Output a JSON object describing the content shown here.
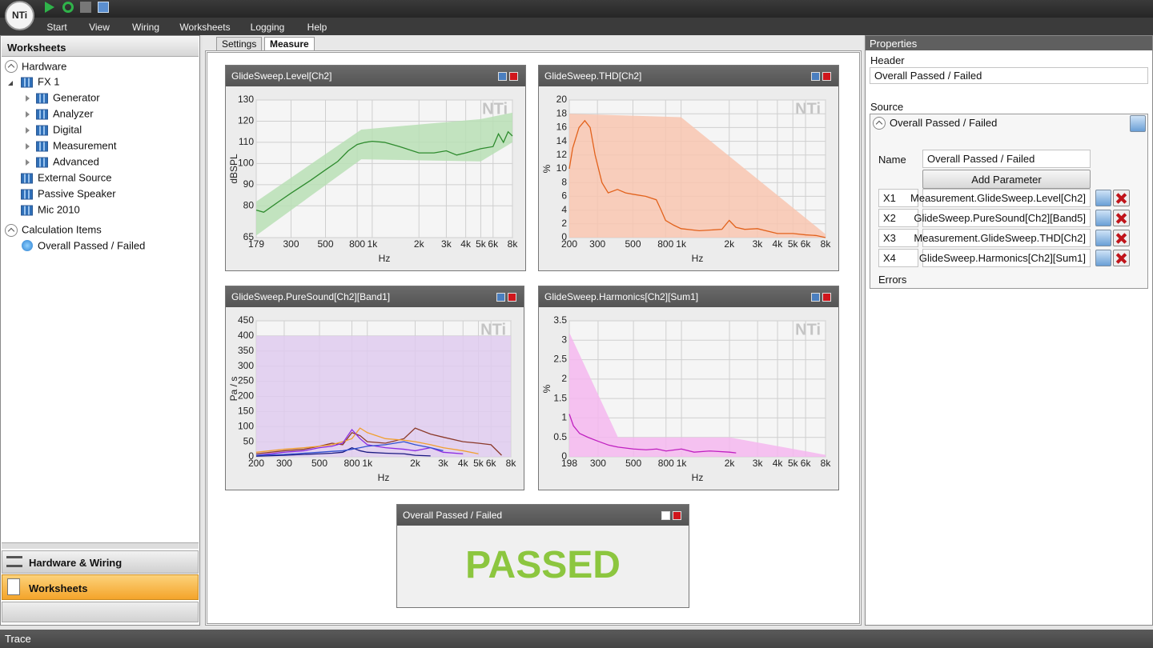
{
  "app": {
    "logo": "NTi",
    "menu": [
      "Start",
      "View",
      "Wiring",
      "Worksheets",
      "Logging",
      "Help"
    ]
  },
  "left_panel": {
    "title": "Worksheets",
    "hardware": "Hardware",
    "device": "FX 1",
    "device_children": [
      "Generator",
      "Analyzer",
      "Digital",
      "Measurement",
      "Advanced"
    ],
    "others": [
      "External Source",
      "Passive Speaker",
      "Mic 2010"
    ],
    "calc": "Calculation Items",
    "calc_items": [
      "Overall Passed / Failed"
    ],
    "nav": [
      "Hardware & Wiring",
      "Worksheets"
    ]
  },
  "tabs": [
    "Settings",
    "Measure"
  ],
  "chart_data": [
    {
      "type": "line",
      "title": "GlideSweep.Level[Ch2]",
      "xlabel": "Hz",
      "ylabel": "dBSPL",
      "log_x": true,
      "grid": true,
      "xlim": [
        179,
        8000
      ],
      "ylim": [
        65,
        130
      ],
      "xticks": [
        179,
        300,
        500,
        800,
        {
          "value": 1000,
          "label": "1k"
        },
        {
          "value": 2000,
          "label": "2k"
        },
        {
          "value": 3000,
          "label": "3k"
        },
        {
          "value": 4000,
          "label": "4k"
        },
        {
          "value": 5000,
          "label": "5k"
        },
        {
          "value": 6000,
          "label": "6k"
        },
        {
          "value": 8000,
          "label": "8k"
        }
      ],
      "yticks": [
        65,
        80,
        90,
        100,
        110,
        120,
        130
      ],
      "band": {
        "color": "#b9dfb5",
        "x": [
          179,
          850,
          5000,
          8000
        ],
        "upper": [
          82,
          116,
          121,
          124
        ],
        "lower": [
          66,
          102,
          101,
          110
        ]
      },
      "series": [
        {
          "color": "#2e8b2e",
          "x": [
            179,
            200,
            250,
            300,
            400,
            500,
            600,
            700,
            800,
            900,
            1000,
            1200,
            1500,
            2000,
            2500,
            3000,
            3500,
            4000,
            5000,
            6000,
            6500,
            7000,
            7500,
            8000
          ],
          "values": [
            78,
            77,
            82,
            86,
            92,
            97,
            101,
            106,
            109,
            110,
            110.5,
            110,
            108,
            105,
            105,
            106,
            104,
            105,
            107,
            108,
            114,
            110,
            115,
            113
          ]
        }
      ]
    },
    {
      "type": "line",
      "title": "GlideSweep.THD[Ch2]",
      "xlabel": "Hz",
      "ylabel": "%",
      "log_x": true,
      "grid": true,
      "xlim": [
        200,
        8000
      ],
      "ylim": [
        0,
        20
      ],
      "xticks": [
        200,
        300,
        500,
        800,
        {
          "value": 1000,
          "label": "1k"
        },
        {
          "value": 2000,
          "label": "2k"
        },
        {
          "value": 3000,
          "label": "3k"
        },
        {
          "value": 4000,
          "label": "4k"
        },
        {
          "value": 5000,
          "label": "5k"
        },
        {
          "value": 6000,
          "label": "6k"
        },
        {
          "value": 8000,
          "label": "8k"
        }
      ],
      "yticks": [
        0,
        2,
        4,
        6,
        8,
        10,
        12,
        14,
        16,
        18,
        20
      ],
      "band": {
        "color": "#f8c6b0",
        "x": [
          200,
          1000,
          8000
        ],
        "upper": [
          18,
          17.5,
          0.5
        ],
        "lower": [
          0,
          0,
          0
        ]
      },
      "series": [
        {
          "color": "#e2621c",
          "x": [
            200,
            210,
            230,
            250,
            270,
            290,
            320,
            350,
            400,
            450,
            500,
            600,
            700,
            750,
            800,
            900,
            1000,
            1300,
            1800,
            2000,
            2200,
            2500,
            3000,
            4000,
            5000,
            6000,
            7000,
            8000
          ],
          "values": [
            10,
            13,
            16,
            17,
            16,
            12,
            8,
            6.5,
            7,
            6.5,
            6.3,
            6,
            5.5,
            4,
            2.5,
            1.8,
            1.3,
            1,
            1.2,
            2.5,
            1.5,
            1.2,
            1.3,
            0.6,
            0.6,
            0.4,
            0.3,
            0
          ]
        }
      ]
    },
    {
      "type": "line",
      "title": "GlideSweep.PureSound[Ch2][Band1]",
      "xlabel": "Hz",
      "ylabel": "Pa / s",
      "log_x": true,
      "grid": true,
      "xlim": [
        200,
        8000
      ],
      "ylim": [
        0,
        450
      ],
      "xticks": [
        200,
        300,
        500,
        800,
        {
          "value": 1000,
          "label": "1k"
        },
        {
          "value": 2000,
          "label": "2k"
        },
        {
          "value": 3000,
          "label": "3k"
        },
        {
          "value": 4000,
          "label": "4k"
        },
        {
          "value": 5000,
          "label": "5k"
        },
        {
          "value": 6000,
          "label": "6k"
        },
        {
          "value": 8000,
          "label": "8k"
        }
      ],
      "yticks": [
        0,
        50,
        100,
        150,
        200,
        250,
        300,
        350,
        400,
        450
      ],
      "band": {
        "color": "#dfcbef",
        "x": [
          200,
          8000
        ],
        "upper": [
          400,
          400
        ],
        "lower": [
          0,
          0
        ]
      },
      "x": [
        200,
        300,
        400,
        500,
        600,
        700,
        800,
        900,
        1000,
        1300,
        1700,
        2000,
        2500,
        3000,
        4000,
        5000,
        6000,
        7000
      ],
      "series": [
        {
          "color": "#8b3a2a",
          "values": [
            10,
            20,
            25,
            35,
            45,
            40,
            80,
            70,
            50,
            45,
            60,
            95,
            75,
            65,
            50,
            45,
            40,
            5
          ]
        },
        {
          "color": "#f0a030",
          "values": [
            15,
            25,
            30,
            35,
            40,
            50,
            60,
            95,
            80,
            60,
            55,
            50,
            40,
            30,
            20,
            10,
            null,
            null
          ]
        },
        {
          "color": "#8a2be2",
          "values": [
            5,
            15,
            20,
            30,
            35,
            45,
            90,
            60,
            40,
            30,
            25,
            20,
            30,
            15,
            10,
            null,
            null,
            null
          ]
        },
        {
          "color": "#1a1a80",
          "values": [
            2,
            5,
            8,
            10,
            12,
            15,
            30,
            20,
            15,
            12,
            10,
            5,
            3,
            null,
            null,
            null,
            null,
            null
          ]
        },
        {
          "color": "#3050d0",
          "values": [
            5,
            8,
            12,
            15,
            18,
            20,
            25,
            30,
            35,
            40,
            50,
            40,
            30,
            20,
            null,
            null,
            null,
            null
          ]
        }
      ]
    },
    {
      "type": "line",
      "title": "GlideSweep.Harmonics[Ch2][Sum1]",
      "xlabel": "Hz",
      "ylabel": "%",
      "log_x": true,
      "grid": true,
      "xlim": [
        198,
        8000
      ],
      "ylim": [
        0,
        3.5
      ],
      "xticks": [
        198,
        300,
        500,
        800,
        {
          "value": 1000,
          "label": "1k"
        },
        {
          "value": 2000,
          "label": "2k"
        },
        {
          "value": 3000,
          "label": "3k"
        },
        {
          "value": 4000,
          "label": "4k"
        },
        {
          "value": 5000,
          "label": "5k"
        },
        {
          "value": 6000,
          "label": "6k"
        },
        {
          "value": 8000,
          "label": "8k"
        }
      ],
      "yticks": [
        0,
        0.5,
        1,
        1.5,
        2,
        2.5,
        3,
        3.5
      ],
      "band": {
        "color": "#f4b7ee",
        "x": [
          198,
          400,
          2000,
          8000
        ],
        "upper": [
          3.2,
          0.5,
          0.5,
          0.05
        ],
        "lower": [
          0,
          0,
          0,
          0
        ]
      },
      "series": [
        {
          "color": "#c020c0",
          "x": [
            198,
            210,
            230,
            260,
            300,
            350,
            400,
            500,
            600,
            700,
            800,
            1000,
            1200,
            1500,
            2000,
            2200
          ],
          "values": [
            1.1,
            0.8,
            0.6,
            0.5,
            0.4,
            0.3,
            0.25,
            0.2,
            0.18,
            0.2,
            0.15,
            0.2,
            0.12,
            0.15,
            0.12,
            0.1
          ]
        }
      ]
    }
  ],
  "result_panel": {
    "title": "Overall Passed / Failed",
    "status": "PASSED"
  },
  "properties": {
    "title": "Properties",
    "header_label": "Header",
    "header_value": "Overall Passed / Failed",
    "source_label": "Source",
    "source_title": "Overall Passed / Failed",
    "name_label": "Name",
    "name_value": "Overall Passed / Failed",
    "button": "Add Parameter",
    "parameters": [
      {
        "key": "X1",
        "value": "Measurement.GlideSweep.Level[Ch2]"
      },
      {
        "key": "X2",
        "value": "GlideSweep.PureSound[Ch2][Band5]"
      },
      {
        "key": "X3",
        "value": "Measurement.GlideSweep.THD[Ch2]"
      },
      {
        "key": "X4",
        "value": "GlideSweep.Harmonics[Ch2][Sum1]"
      }
    ],
    "errors_label": "Errors"
  },
  "trace": {
    "title": "Trace"
  }
}
